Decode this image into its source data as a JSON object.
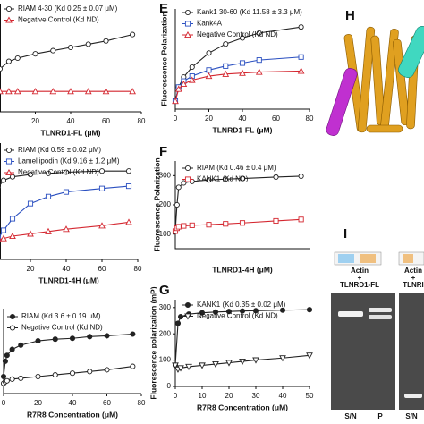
{
  "chart_data": [
    {
      "type": "line",
      "x_label": "TLNRD1-FL (μM)",
      "xlim": [
        0,
        80
      ],
      "xticks": [
        20,
        40,
        60,
        80
      ],
      "ylim": [
        0,
        100
      ],
      "x": [
        0,
        5,
        10,
        20,
        30,
        40,
        50,
        60,
        75
      ],
      "series": [
        {
          "name": "RIAM 4-30 (Kd 0.25 ± 0.07 μM)",
          "color": "#222222",
          "marker": "circle",
          "values": [
            40,
            47,
            50,
            54,
            57,
            60,
            63,
            66,
            72
          ]
        },
        {
          "name": "Negative Control (Kd ND)",
          "color": "#d4262f",
          "marker": "triangle",
          "values": [
            19,
            19,
            19,
            19,
            19,
            19,
            19,
            19,
            19
          ]
        }
      ]
    },
    {
      "type": "line",
      "x_label": "TLNRD1-4H (μM)",
      "xlim": [
        0,
        80
      ],
      "xticks": [
        20,
        40,
        60,
        80
      ],
      "ylim": [
        0,
        100
      ],
      "x": [
        0,
        2,
        5,
        10,
        20,
        30,
        40,
        60,
        75
      ],
      "series": [
        {
          "name": "RIAM (Kd 0.59 ± 0.02 μM)",
          "color": "#222222",
          "marker": "circle",
          "values": [
            55,
            62,
            68,
            71,
            73,
            74,
            75,
            76,
            76
          ]
        },
        {
          "name": "Lamellipodin (Kd 9.16 ± 1.2 μM)",
          "color": "#2a4fc0",
          "marker": "square",
          "values": [
            12,
            18,
            25,
            35,
            48,
            54,
            58,
            61,
            63
          ]
        },
        {
          "name": "Negative Control (Kd ND)",
          "color": "#d4262f",
          "marker": "triangle",
          "values": [
            15,
            17,
            18,
            20,
            22,
            24,
            26,
            29,
            32
          ]
        }
      ]
    },
    {
      "type": "line",
      "x_label": "R7R8 Concentration (μM)",
      "xlim": [
        0,
        80
      ],
      "xticks": [
        0,
        20,
        40,
        60,
        80
      ],
      "ylim": [
        0,
        100
      ],
      "x": [
        0,
        1,
        2,
        5,
        10,
        20,
        30,
        40,
        50,
        60,
        75
      ],
      "series": [
        {
          "name": "RIAM (Kd 3.6 ± 0.19 μM)",
          "color": "#222222",
          "marker": "filled-circle",
          "values": [
            20,
            38,
            45,
            52,
            57,
            62,
            64,
            65,
            67,
            68,
            70
          ]
        },
        {
          "name": "Negative Control (Kd ND)",
          "color": "#222222",
          "marker": "circle",
          "values": [
            12,
            14,
            15,
            17,
            18,
            20,
            22,
            24,
            26,
            28,
            32
          ]
        }
      ]
    },
    {
      "type": "line",
      "label": "E",
      "x_label": "TLNRD1-FL (μM)",
      "y_label": "Fluorescence Polarization",
      "xlim": [
        0,
        80
      ],
      "xticks": [
        0,
        20,
        40,
        60,
        80
      ],
      "ylim": [
        0,
        100
      ],
      "x": [
        0,
        2,
        5,
        10,
        20,
        30,
        40,
        50,
        75
      ],
      "series": [
        {
          "name": "Kank1 30-60 (Kd 11.58 ± 3.3 μM)",
          "color": "#222222",
          "marker": "circle",
          "values": [
            8,
            22,
            32,
            42,
            56,
            65,
            71,
            76,
            82
          ]
        },
        {
          "name": "Kank4A",
          "color": "#2a4fc0",
          "marker": "square",
          "values": [
            8,
            22,
            28,
            33,
            39,
            43,
            46,
            49,
            52
          ]
        },
        {
          "name": "Negative Control (Kd ND)",
          "color": "#d4262f",
          "marker": "triangle",
          "values": [
            8,
            20,
            25,
            29,
            33,
            35,
            36,
            37,
            38
          ]
        }
      ]
    },
    {
      "type": "line",
      "label": "F",
      "x_label": "TLNRD1-4H (μM)",
      "y_label": "Fluorescence Polarization",
      "xlim": [
        0,
        80
      ],
      "ylim": [
        50,
        350
      ],
      "yticks": [
        100,
        200,
        300
      ],
      "x": [
        0,
        1,
        2,
        5,
        10,
        20,
        30,
        40,
        60,
        75
      ],
      "series": [
        {
          "name": "RIAM (Kd 0.46 ± 0.4 μM)",
          "color": "#222222",
          "marker": "circle",
          "values": [
            110,
            200,
            260,
            275,
            280,
            285,
            288,
            290,
            295,
            298
          ]
        },
        {
          "name": "KANK1 (Kd ND)",
          "color": "#d4262f",
          "marker": "square",
          "values": [
            110,
            120,
            125,
            128,
            130,
            132,
            135,
            138,
            145,
            150
          ]
        }
      ]
    },
    {
      "type": "line",
      "label": "G",
      "x_label": "R7R8 Concentration (μM)",
      "y_label": "Fluorescence polarization (mP)",
      "xlim": [
        0,
        50
      ],
      "xticks": [
        0,
        10,
        20,
        30,
        40,
        50
      ],
      "ylim": [
        0,
        330
      ],
      "yticks": [
        0,
        100,
        200,
        300
      ],
      "x": [
        0,
        1,
        2,
        5,
        10,
        15,
        20,
        25,
        30,
        40,
        50
      ],
      "series": [
        {
          "name": "KANK1 (Kd 0.35 ± 0.02 μM)",
          "color": "#222222",
          "marker": "filled-circle",
          "values": [
            80,
            240,
            265,
            275,
            280,
            283,
            285,
            287,
            288,
            290,
            292
          ]
        },
        {
          "name": "Negative Control (Kd ND)",
          "color": "#222222",
          "marker": "triangle-down",
          "values": [
            80,
            65,
            70,
            75,
            80,
            85,
            90,
            95,
            100,
            108,
            118
          ]
        }
      ]
    }
  ],
  "structure": {
    "label": "H"
  },
  "gel": {
    "label": "I",
    "headers": [
      [
        "Actin",
        "+",
        "TLNRD1-FL"
      ],
      [
        "Actin",
        "+",
        "TLNRI"
      ]
    ],
    "lanes": [
      "S/N",
      "P",
      "S/N"
    ]
  }
}
